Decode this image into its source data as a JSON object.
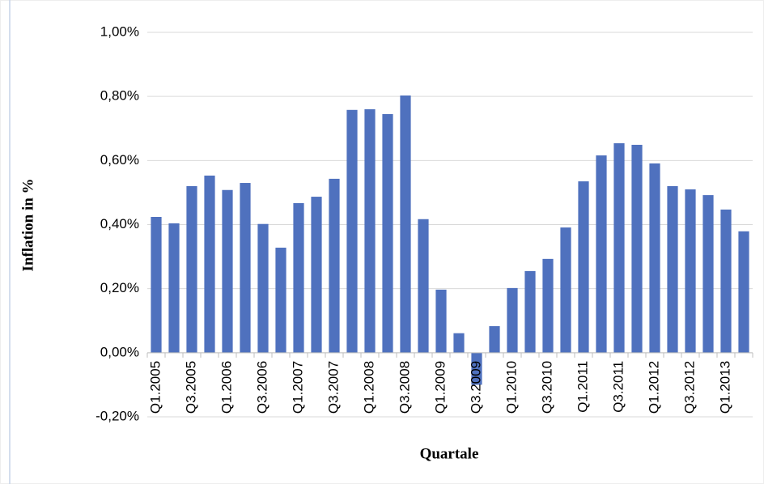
{
  "chart_data": {
    "type": "bar",
    "y_label": "Inflation in %",
    "x_label": "Quartale",
    "categories": [
      "Q1.2005",
      null,
      "Q3.2005",
      null,
      "Q1.2006",
      null,
      "Q3.2006",
      null,
      "Q1.2007",
      null,
      "Q3.2007",
      null,
      "Q1.2008",
      null,
      "Q3.2008",
      null,
      "Q1.2009",
      null,
      "Q3.2009",
      null,
      "Q1.2010",
      null,
      "Q3.2010",
      null,
      "Q1.2011",
      null,
      "Q3.2011",
      null,
      "Q1.2012",
      null,
      "Q3.2012",
      null,
      "Q1.2013",
      null
    ],
    "values": [
      0.424,
      0.404,
      0.52,
      0.553,
      0.508,
      0.53,
      0.402,
      0.328,
      0.467,
      0.487,
      0.543,
      0.758,
      0.76,
      0.745,
      0.803,
      0.417,
      0.197,
      0.061,
      -0.1,
      0.083,
      0.202,
      0.255,
      0.293,
      0.391,
      0.535,
      0.616,
      0.654,
      0.649,
      0.591,
      0.52,
      0.51,
      0.492,
      0.447,
      0.379
    ],
    "color": "#4f71be",
    "ylim": [
      -0.2,
      1.0
    ],
    "yticks": [
      {
        "value": -0.2,
        "label": "-0,20%"
      },
      {
        "value": 0,
        "label": "0,00%"
      },
      {
        "value": 0.2,
        "label": "0,20%"
      },
      {
        "value": 0.4,
        "label": "0,40%"
      },
      {
        "value": 0.6,
        "label": "0,60%"
      },
      {
        "value": 0.8,
        "label": "0,80%"
      },
      {
        "value": 1.0,
        "label": "1,00%"
      }
    ],
    "grid": true
  }
}
